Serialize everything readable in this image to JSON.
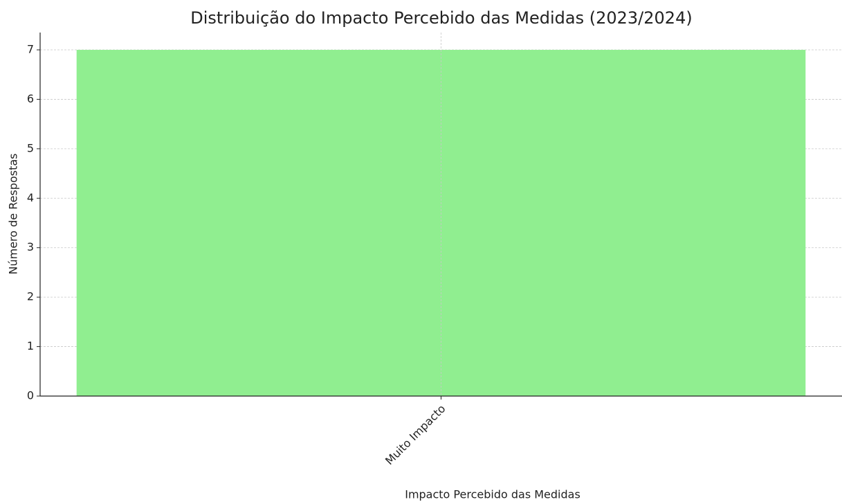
{
  "chart_data": {
    "type": "bar",
    "title": "Distribuição do Impacto Percebido das Medidas (2023/2024)",
    "x_label": "Impacto Percebido das Medidas",
    "y_label": "Número de Respostas",
    "categories": [
      "Muito Impacto"
    ],
    "values": [
      7
    ],
    "color": "#90ee90",
    "ylim": [
      0,
      7.35
    ],
    "yticks": [
      0,
      1,
      2,
      3,
      4,
      5,
      6,
      7
    ],
    "grid": true
  }
}
